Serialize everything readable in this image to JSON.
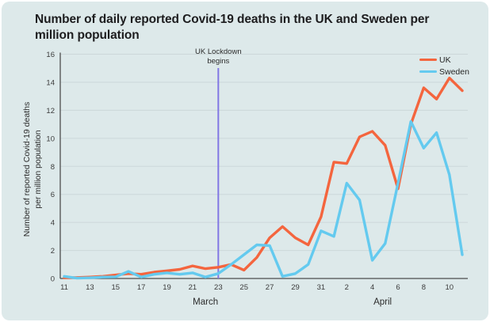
{
  "title": "Number of daily reported Covid-19 deaths in the UK and Sweden per million population",
  "annotation": {
    "line1": "UK Lockdown",
    "line2": "begins"
  },
  "legend": [
    {
      "label": "UK",
      "color": "#f4653e"
    },
    {
      "label": "Sweden",
      "color": "#64caef"
    }
  ],
  "colors": {
    "card_background": "#dde9ea",
    "uk_line": "#f4653e",
    "sweden_line": "#64caef",
    "lockdown_line": "#8277e4",
    "gridline": "#ccd7d9",
    "axis": "#4d4d4d",
    "tick_text": "#3a3a3a"
  },
  "chart_data": {
    "type": "line",
    "title": "Number of daily reported Covid-19 deaths in the UK and Sweden per million population",
    "ylabel": "Number of reported Covid-19 deaths\nper million population",
    "ylim": [
      0,
      16
    ],
    "yticks": [
      0,
      2,
      4,
      6,
      8,
      10,
      12,
      14,
      16
    ],
    "x_tick_labels": [
      "11",
      "13",
      "15",
      "17",
      "19",
      "21",
      "23",
      "25",
      "27",
      "29",
      "31",
      "2",
      "4",
      "6",
      "8",
      "10"
    ],
    "month_labels": [
      {
        "label": "March",
        "day_index": 11
      },
      {
        "label": "April",
        "day_index": 24.8
      }
    ],
    "dates": [
      "Mar 11",
      "Mar 12",
      "Mar 13",
      "Mar 14",
      "Mar 15",
      "Mar 16",
      "Mar 17",
      "Mar 18",
      "Mar 19",
      "Mar 20",
      "Mar 21",
      "Mar 22",
      "Mar 23",
      "Mar 24",
      "Mar 25",
      "Mar 26",
      "Mar 27",
      "Mar 28",
      "Mar 29",
      "Mar 30",
      "Mar 31",
      "Apr 1",
      "Apr 2",
      "Apr 3",
      "Apr 4",
      "Apr 5",
      "Apr 6",
      "Apr 7",
      "Apr 8",
      "Apr 9",
      "Apr 10",
      "Apr 11"
    ],
    "annotation": {
      "text": "UK Lockdown begins",
      "date": "Mar 23",
      "day_index": 12
    },
    "legend_position": "top-right",
    "grid": true,
    "series": [
      {
        "name": "UK",
        "values": [
          0.05,
          0.07,
          0.1,
          0.15,
          0.25,
          0.35,
          0.3,
          0.45,
          0.55,
          0.65,
          0.9,
          0.7,
          0.8,
          1.0,
          0.6,
          1.5,
          2.9,
          3.7,
          2.9,
          2.4,
          4.4,
          8.3,
          8.2,
          10.1,
          10.5,
          9.5,
          6.4,
          11.0,
          13.6,
          12.8,
          14.3,
          13.4
        ]
      },
      {
        "name": "Sweden",
        "values": [
          0.15,
          0.02,
          0.05,
          0.1,
          0.12,
          0.5,
          0.1,
          0.3,
          0.4,
          0.3,
          0.4,
          0.1,
          0.35,
          1.0,
          1.7,
          2.4,
          2.35,
          0.15,
          0.35,
          1.0,
          3.4,
          3.0,
          6.8,
          5.6,
          1.3,
          2.5,
          6.8,
          11.2,
          9.3,
          10.4,
          7.4,
          1.7
        ]
      }
    ]
  }
}
